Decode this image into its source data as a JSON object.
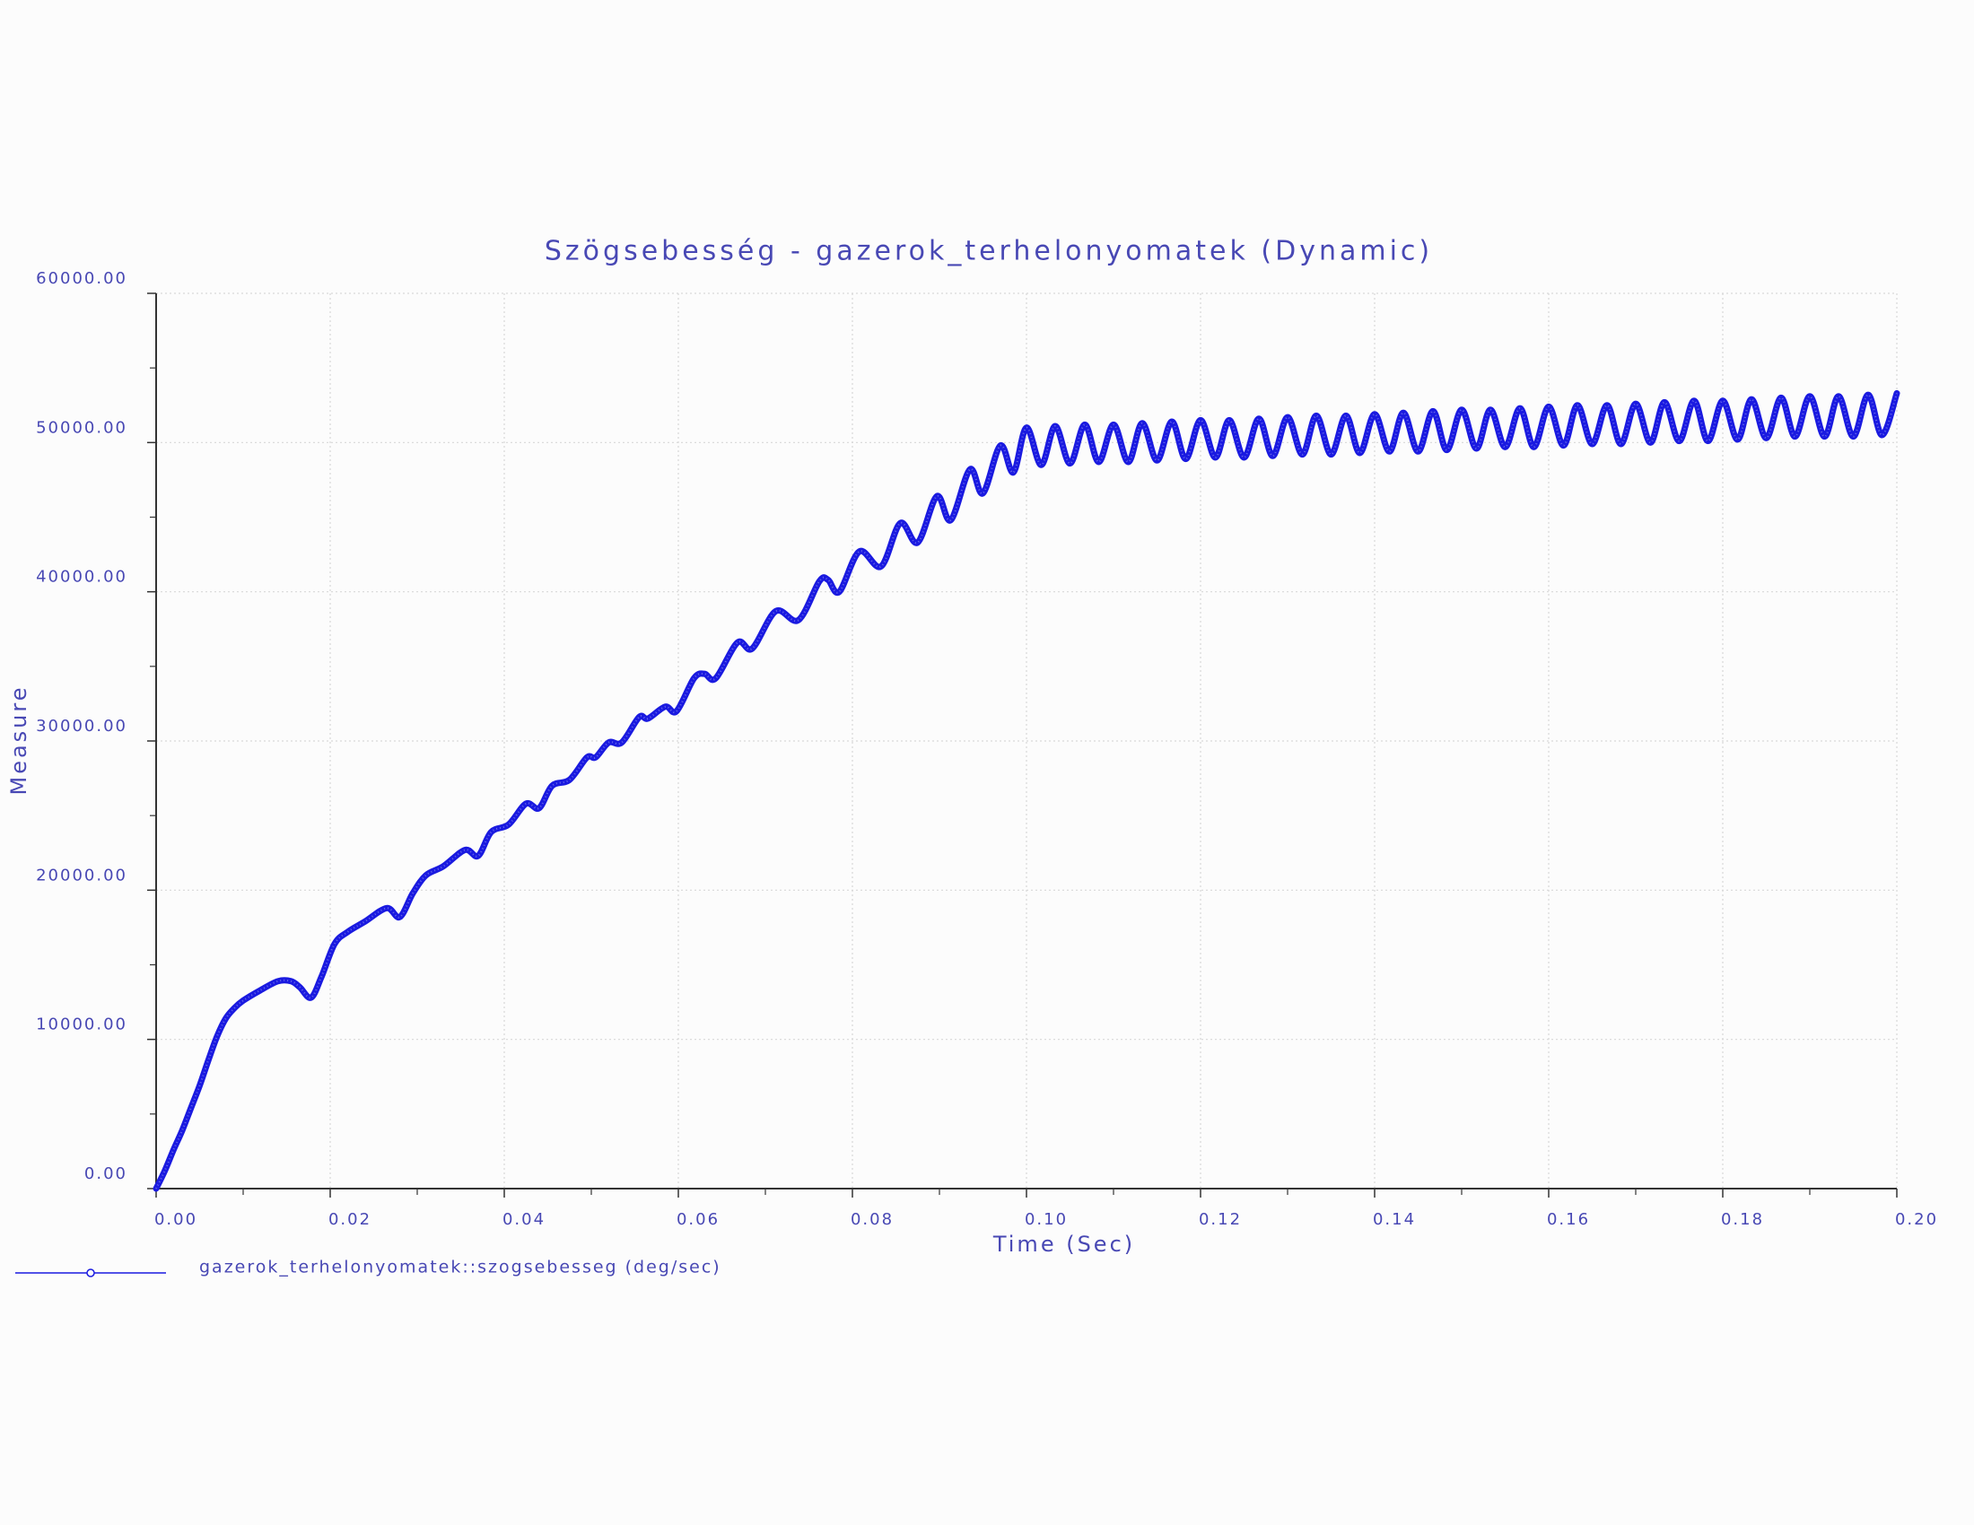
{
  "chart_data": {
    "type": "line",
    "title": "Szögsebesség - gazerok_terhelonyomatek (Dynamic)",
    "x_label": "Time (Sec)",
    "y_label": "Measure",
    "grid": true,
    "xlim": [
      0,
      0.2
    ],
    "ylim": [
      0,
      60000
    ],
    "xticks": [
      {
        "value": 0,
        "label": "0.00"
      },
      {
        "value": 0.02,
        "label": "0.02"
      },
      {
        "value": 0.04,
        "label": "0.04"
      },
      {
        "value": 0.06,
        "label": "0.06"
      },
      {
        "value": 0.08,
        "label": "0.08"
      },
      {
        "value": 0.1,
        "label": "0.10"
      },
      {
        "value": 0.12,
        "label": "0.12"
      },
      {
        "value": 0.14,
        "label": "0.14"
      },
      {
        "value": 0.16,
        "label": "0.16"
      },
      {
        "value": 0.18,
        "label": "0.18"
      },
      {
        "value": 0.2,
        "label": "0.20"
      }
    ],
    "yticks": [
      {
        "value": 0,
        "label": "0.00"
      },
      {
        "value": 10000,
        "label": "10000.00"
      },
      {
        "value": 20000,
        "label": "20000.00"
      },
      {
        "value": 30000,
        "label": "30000.00"
      },
      {
        "value": 40000,
        "label": "40000.00"
      },
      {
        "value": 50000,
        "label": "50000.00"
      },
      {
        "value": 60000,
        "label": "60000.00"
      }
    ],
    "xminorticks": [
      0.01,
      0.03,
      0.05,
      0.07,
      0.09,
      0.11,
      0.13,
      0.15,
      0.17,
      0.19
    ],
    "yminorticks": [
      5000,
      15000,
      25000,
      35000,
      45000,
      55000
    ],
    "x": [
      0,
      0.001,
      0.002,
      0.003,
      0.004,
      0.005,
      0.006,
      0.007,
      0.008,
      0.009,
      0.01,
      0.012,
      0.014,
      0.0155,
      0.0165,
      0.0178,
      0.019,
      0.0205,
      0.022,
      0.024,
      0.0265,
      0.028,
      0.0295,
      0.031,
      0.033,
      0.0355,
      0.037,
      0.0385,
      0.0405,
      0.0425,
      0.044,
      0.0455,
      0.0475,
      0.0495,
      0.0505,
      0.052,
      0.0535,
      0.0555,
      0.0565,
      0.0585,
      0.0598,
      0.0618,
      0.063,
      0.0643,
      0.0668,
      0.0685,
      0.0712,
      0.0738,
      0.0762,
      0.0772,
      0.0785,
      0.0808,
      0.0833,
      0.0855,
      0.0875,
      0.0897,
      0.0913,
      0.0935,
      0.095,
      0.097,
      0.0985,
      0.1,
      0.1017,
      0.1033,
      0.105,
      0.1067,
      0.1083,
      0.11,
      0.1117,
      0.1133,
      0.115,
      0.1167,
      0.1183,
      0.12,
      0.1217,
      0.1233,
      0.125,
      0.1267,
      0.1283,
      0.13,
      0.1317,
      0.1333,
      0.135,
      0.1367,
      0.1383,
      0.14,
      0.1417,
      0.1433,
      0.145,
      0.1467,
      0.1483,
      0.15,
      0.1517,
      0.1533,
      0.155,
      0.1567,
      0.1583,
      0.16,
      0.1617,
      0.1633,
      0.165,
      0.1667,
      0.1683,
      0.17,
      0.1717,
      0.1733,
      0.175,
      0.1767,
      0.1783,
      0.18,
      0.1817,
      0.1833,
      0.185,
      0.1867,
      0.1883,
      0.19,
      0.1917,
      0.1933,
      0.195,
      0.1967,
      0.1983,
      0.2
    ],
    "series": [
      {
        "name": "gazerok_terhelonyomatek::szogsebesseg (deg/sec)",
        "color": "#1a1ae0",
        "values": [
          0,
          1200,
          2600,
          3900,
          5400,
          6900,
          8600,
          10200,
          11400,
          12100,
          12600,
          13300,
          13900,
          13900,
          13500,
          12800,
          14200,
          16400,
          17200,
          17900,
          18800,
          18200,
          19800,
          21000,
          21600,
          22700,
          22300,
          23900,
          24400,
          25800,
          25500,
          27000,
          27400,
          28900,
          28900,
          29900,
          29900,
          31600,
          31500,
          32300,
          32000,
          34200,
          34500,
          34200,
          36600,
          36200,
          38700,
          38100,
          40700,
          40800,
          40000,
          42700,
          41700,
          44600,
          43300,
          46400,
          44800,
          48200,
          46600,
          49800,
          48000,
          51000,
          48500,
          51100,
          48600,
          51200,
          48700,
          51200,
          48700,
          51300,
          48800,
          51400,
          48900,
          51500,
          49000,
          51500,
          49000,
          51600,
          49100,
          51700,
          49200,
          51800,
          49200,
          51800,
          49300,
          51900,
          49400,
          52000,
          49400,
          52100,
          49500,
          52200,
          49600,
          52200,
          49700,
          52300,
          49700,
          52400,
          49800,
          52500,
          49900,
          52500,
          49900,
          52600,
          50000,
          52700,
          50100,
          52800,
          50100,
          52800,
          50200,
          52900,
          50300,
          53000,
          50400,
          53100,
          50400,
          53100,
          50400,
          53200,
          50500,
          53300
        ]
      }
    ]
  }
}
